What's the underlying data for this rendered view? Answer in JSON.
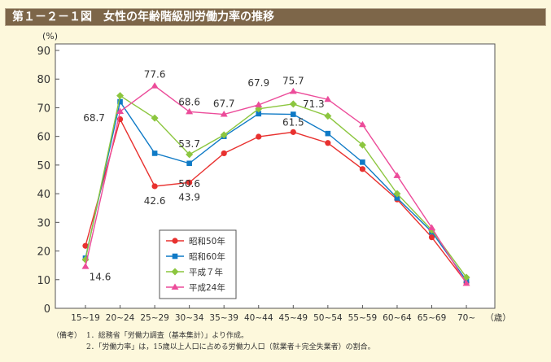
{
  "title": "第１－２－１図　女性の年齢階級別労働力率の推移",
  "chart_data": {
    "type": "line",
    "ylabel": "(%)",
    "xlabel": "（歳）",
    "ylim": [
      0,
      90
    ],
    "yticks": [
      0,
      10,
      20,
      30,
      40,
      50,
      60,
      70,
      80,
      90
    ],
    "grid": false,
    "legend_position": "bottom-left inside",
    "categories": [
      "15~19",
      "20~24",
      "25~29",
      "30~34",
      "35~39",
      "40~44",
      "45~49",
      "50~54",
      "55~59",
      "60~64",
      "65~69",
      "70~"
    ],
    "series": [
      {
        "name": "昭和50年",
        "color": "#e8312f",
        "marker": "circle",
        "values": [
          21.8,
          66.0,
          42.6,
          43.9,
          54.1,
          59.9,
          61.5,
          57.7,
          48.6,
          38.0,
          24.8,
          9.0
        ]
      },
      {
        "name": "昭和60年",
        "color": "#0f7ac6",
        "marker": "square",
        "values": [
          17.5,
          72.1,
          54.1,
          50.6,
          60.0,
          67.9,
          67.7,
          61.0,
          51.0,
          38.5,
          26.7,
          9.7
        ]
      },
      {
        "name": "平成７年",
        "color": "#8cc63f",
        "marker": "diamond",
        "values": [
          17.0,
          74.2,
          66.4,
          53.7,
          60.5,
          69.6,
          71.3,
          67.1,
          57.0,
          40.0,
          27.3,
          10.8
        ]
      },
      {
        "name": "平成24年",
        "color": "#ec4c9a",
        "marker": "triangle",
        "values": [
          14.6,
          68.7,
          77.6,
          68.6,
          67.7,
          71.0,
          75.7,
          72.9,
          64.1,
          46.3,
          28.1,
          8.7
        ]
      }
    ],
    "annotations": [
      {
        "text": "68.7",
        "series": 3,
        "index": 1
      },
      {
        "text": "77.6",
        "series": 3,
        "index": 2
      },
      {
        "text": "68.6",
        "series": 3,
        "index": 3
      },
      {
        "text": "67.7",
        "series": 3,
        "index": 4
      },
      {
        "text": "75.7",
        "series": 3,
        "index": 6
      },
      {
        "text": "14.6",
        "series": 3,
        "index": 0
      },
      {
        "text": "53.7",
        "series": 2,
        "index": 3
      },
      {
        "text": "71.3",
        "series": 2,
        "index": 6
      },
      {
        "text": "50.6",
        "series": 1,
        "index": 3
      },
      {
        "text": "67.9",
        "series": 1,
        "index": 5
      },
      {
        "text": "42.6",
        "series": 0,
        "index": 2
      },
      {
        "text": "43.9",
        "series": 0,
        "index": 3
      },
      {
        "text": "61.5",
        "series": 0,
        "index": 6
      }
    ]
  },
  "notes": {
    "label": "（備考）",
    "items": [
      "1．総務省「労働力調査（基本集計）」より作成。",
      "2．「労働力率」は，15歳以上人口に占める労働力人口（就業者＋完全失業者）の割合。"
    ]
  }
}
